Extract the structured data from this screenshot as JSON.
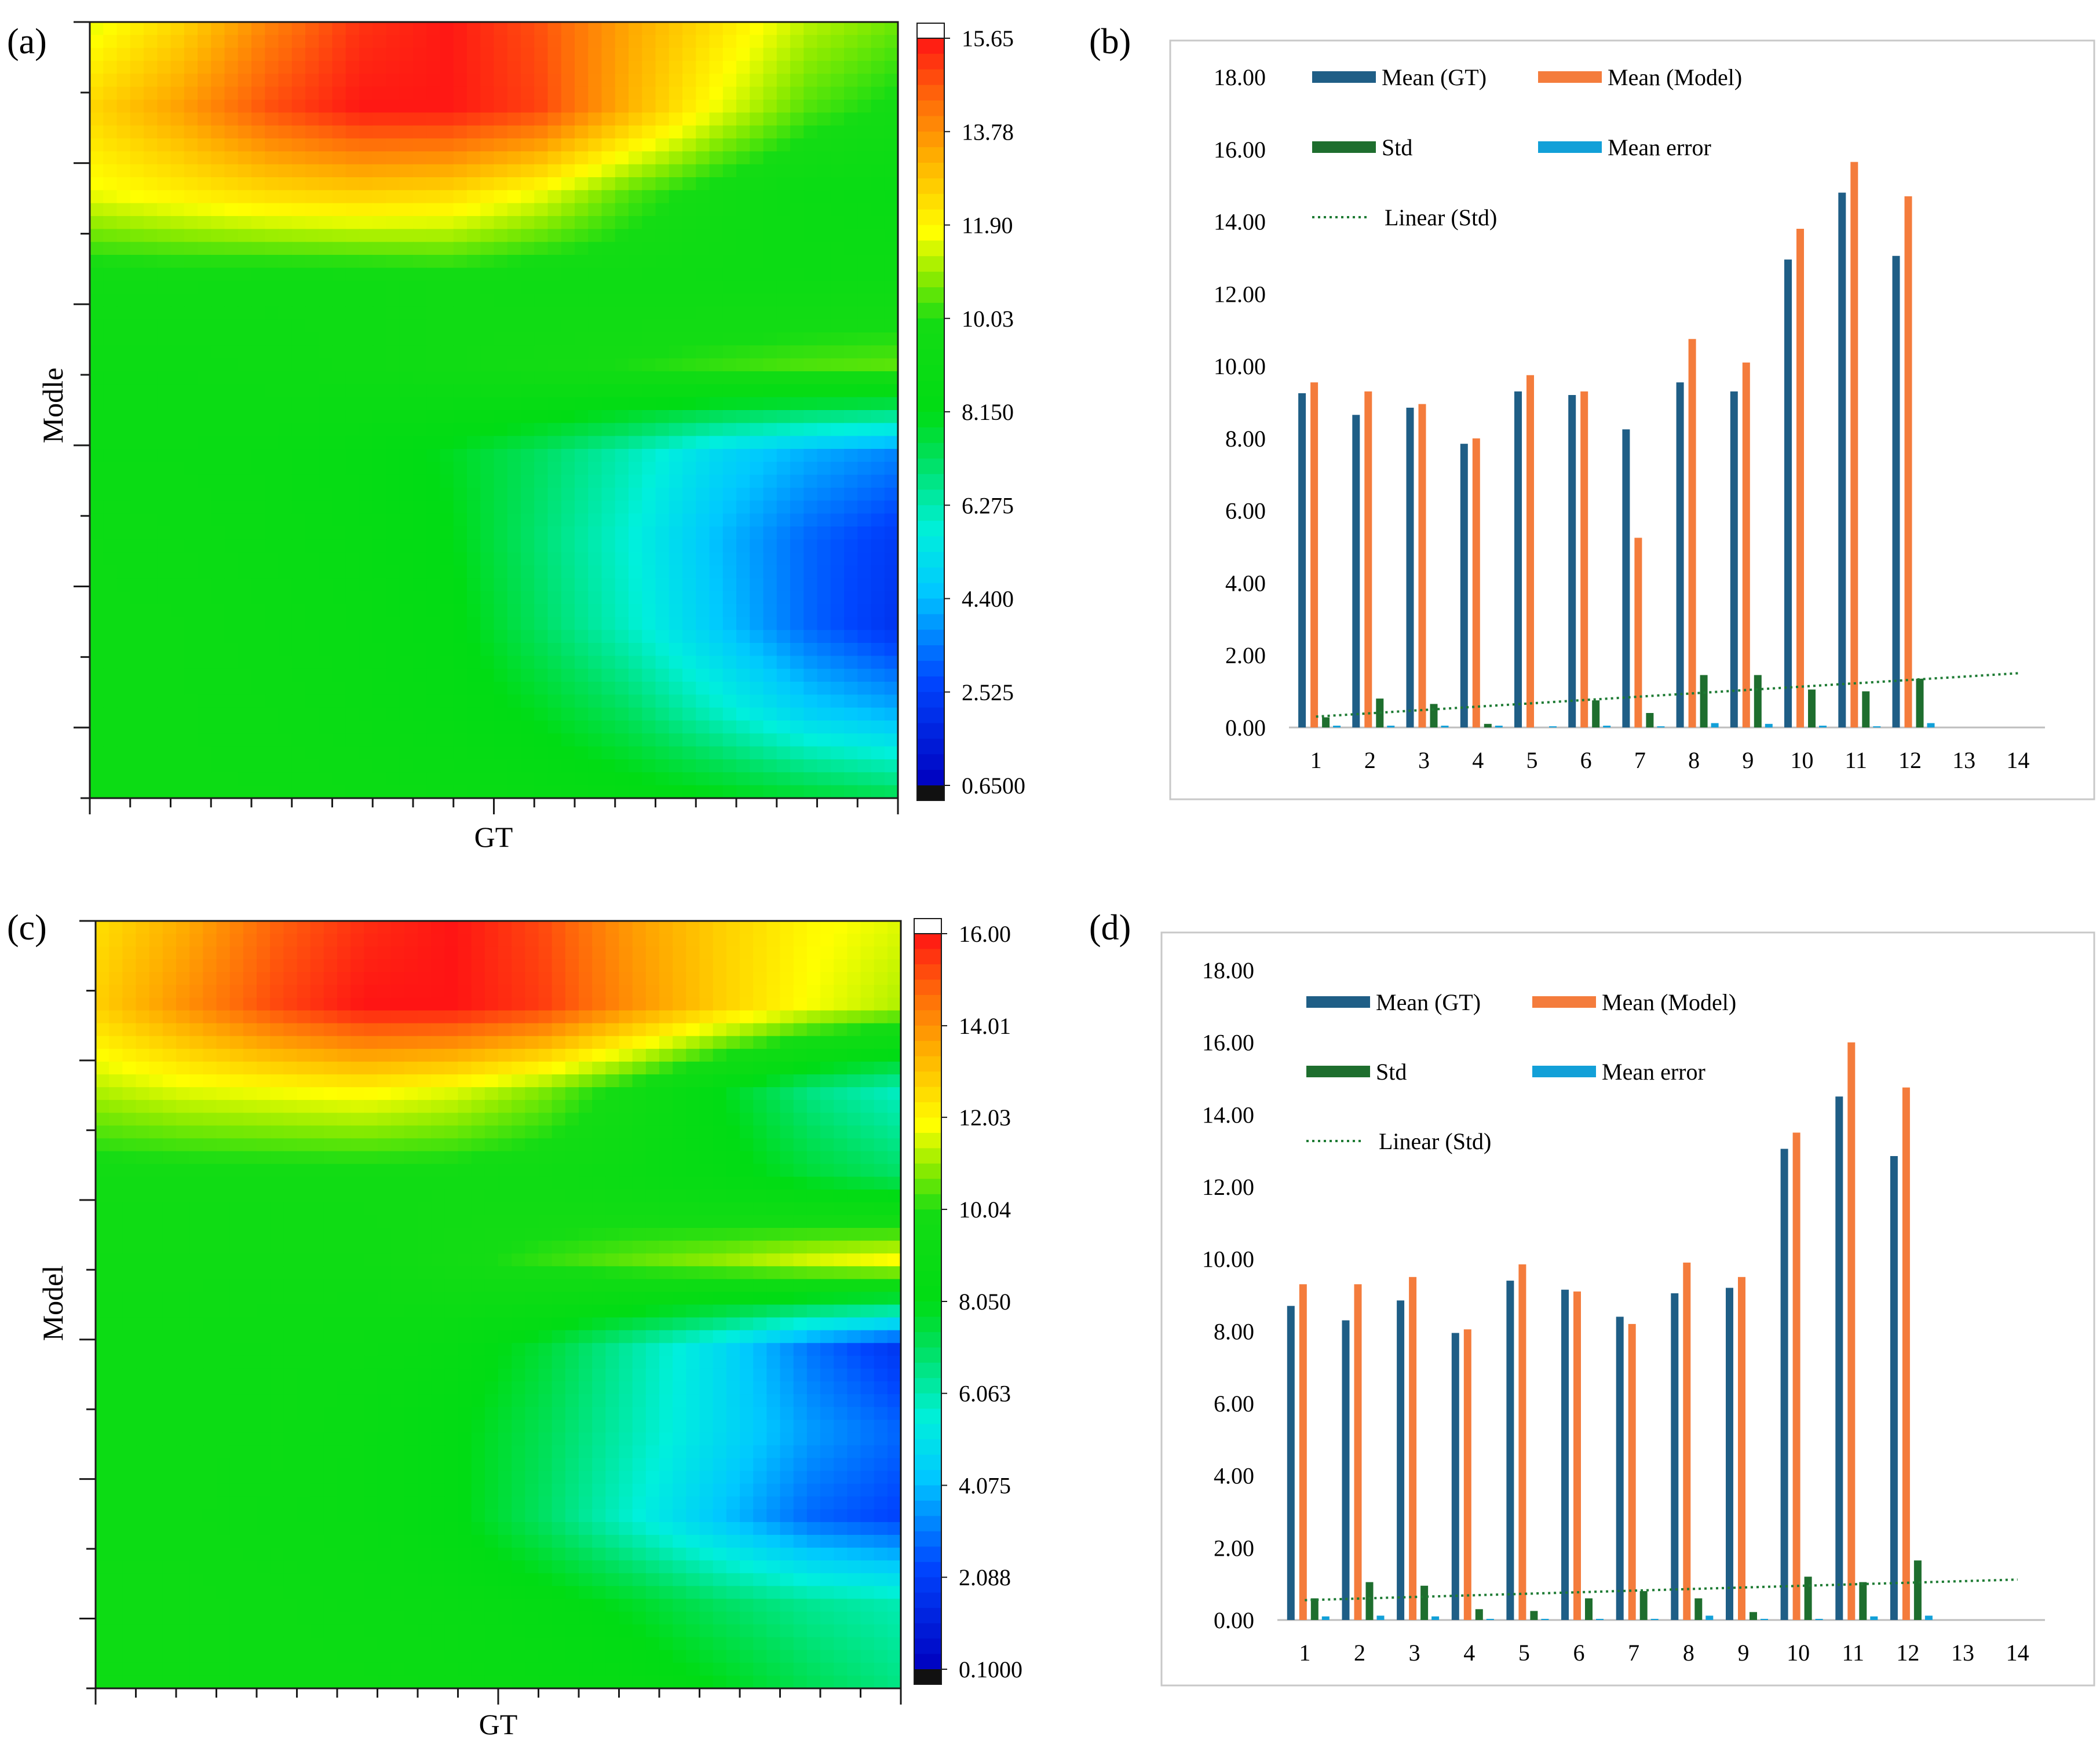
{
  "figure_panels": [
    "(a)",
    "(b)",
    "(c)",
    "(d)"
  ],
  "colors": {
    "mean_gt": "#1F5E86",
    "mean_model": "#F47C3C",
    "std": "#1E6E2E",
    "mean_error": "#12A0D8",
    "linear_std": "#1E7B34",
    "axis": "#1a1a1a",
    "plot_border": "#c8c8c8"
  },
  "chart_data": [
    {
      "type": "heatmap",
      "panel": "(a)",
      "title": "",
      "xlabel": "GT",
      "ylabel": "Modle",
      "colorbar": {
        "min": 0.65,
        "max": 15.65,
        "tick_labels": [
          "15.65",
          "13.78",
          "11.90",
          "10.03",
          "8.150",
          "6.275",
          "4.400",
          "2.525",
          "0.6500"
        ],
        "tick_values": [
          15.65,
          13.775,
          11.9,
          10.025,
          8.15,
          6.275,
          4.4,
          2.525,
          0.65
        ]
      },
      "x_minor_ticks": 20,
      "y_minor_ticks": 11,
      "grid_values": [
        [
          11.5,
          12.5,
          14.0,
          15.2,
          15.6,
          14.8,
          13.4,
          12.3,
          11.2,
          10.6
        ],
        [
          12.5,
          13.5,
          14.8,
          15.6,
          15.6,
          15.0,
          13.2,
          11.6,
          10.4,
          9.8
        ],
        [
          11.6,
          12.0,
          12.4,
          12.6,
          12.4,
          11.6,
          10.4,
          9.6,
          9.0,
          8.8
        ],
        [
          9.5,
          9.5,
          9.4,
          9.4,
          9.6,
          9.4,
          9.4,
          9.3,
          9.2,
          9.2
        ],
        [
          9.2,
          9.2,
          9.3,
          9.4,
          9.6,
          9.8,
          10.0,
          10.2,
          10.4,
          10.5
        ],
        [
          9.0,
          9.0,
          8.9,
          8.6,
          8.0,
          7.2,
          6.2,
          5.0,
          4.2,
          3.6
        ],
        [
          9.2,
          9.1,
          8.9,
          8.7,
          8.2,
          7.0,
          5.8,
          4.4,
          3.2,
          2.4
        ],
        [
          9.2,
          9.2,
          9.0,
          8.8,
          8.4,
          7.2,
          6.0,
          4.6,
          3.2,
          2.2
        ],
        [
          9.2,
          9.2,
          9.1,
          8.9,
          8.6,
          8.0,
          7.2,
          6.0,
          4.8,
          4.2
        ],
        [
          9.2,
          9.2,
          9.2,
          9.1,
          9.0,
          8.8,
          8.5,
          8.2,
          7.8,
          7.4
        ]
      ]
    },
    {
      "type": "bar",
      "panel": "(b)",
      "title": "",
      "xlabel": "",
      "ylabel": "",
      "categories": [
        "1",
        "2",
        "3",
        "4",
        "5",
        "6",
        "7",
        "8",
        "9",
        "10",
        "11",
        "12",
        "13",
        "14"
      ],
      "ylim": [
        0,
        18
      ],
      "ytick_labels": [
        "0.00",
        "2.00",
        "4.00",
        "6.00",
        "8.00",
        "10.00",
        "12.00",
        "14.00",
        "16.00",
        "18.00"
      ],
      "legend": [
        {
          "label": "Mean (GT)",
          "kind": "bar",
          "color_key": "mean_gt"
        },
        {
          "label": "Mean (Model)",
          "kind": "bar",
          "color_key": "mean_model"
        },
        {
          "label": "Std",
          "kind": "bar",
          "color_key": "std"
        },
        {
          "label": "Mean error",
          "kind": "bar",
          "color_key": "mean_error"
        },
        {
          "label": "Linear (Std)",
          "kind": "line",
          "color_key": "linear_std"
        }
      ],
      "series": [
        {
          "name": "Mean (GT)",
          "values": [
            9.25,
            8.65,
            8.85,
            7.85,
            9.3,
            9.2,
            8.25,
            9.55,
            9.3,
            12.95,
            14.8,
            13.05,
            null,
            null
          ]
        },
        {
          "name": "Mean (Model)",
          "values": [
            9.55,
            9.3,
            8.95,
            8.0,
            9.75,
            9.3,
            5.25,
            10.75,
            10.1,
            13.8,
            15.65,
            14.7,
            null,
            null
          ]
        },
        {
          "name": "Std",
          "values": [
            0.28,
            0.8,
            0.65,
            0.1,
            0.0,
            0.75,
            0.4,
            1.45,
            1.45,
            1.05,
            1.0,
            1.35,
            null,
            null
          ]
        },
        {
          "name": "Mean error",
          "values": [
            0.05,
            0.05,
            0.05,
            0.05,
            0.03,
            0.05,
            0.03,
            0.12,
            0.1,
            0.05,
            0.03,
            0.12,
            null,
            null
          ]
        }
      ],
      "trendline": {
        "name": "Linear (Std)",
        "x_range": [
          1,
          14
        ],
        "y_start": 0.3,
        "y_end": 1.5
      }
    },
    {
      "type": "heatmap",
      "panel": "(c)",
      "title": "",
      "xlabel": "GT",
      "ylabel": "Model",
      "colorbar": {
        "min": 0.1,
        "max": 16.0,
        "tick_labels": [
          "16.00",
          "14.01",
          "12.03",
          "10.04",
          "8.050",
          "6.063",
          "4.075",
          "2.088",
          "0.1000"
        ],
        "tick_values": [
          16.0,
          14.01,
          12.03,
          10.04,
          8.05,
          6.063,
          4.075,
          2.088,
          0.1
        ]
      },
      "x_minor_ticks": 20,
      "y_minor_ticks": 11,
      "grid_values": [
        [
          12.5,
          13.5,
          14.8,
          15.6,
          16.0,
          15.2,
          13.8,
          12.8,
          12.0,
          11.6
        ],
        [
          12.8,
          14.0,
          15.2,
          16.0,
          16.0,
          15.4,
          14.0,
          12.8,
          11.8,
          11.2
        ],
        [
          11.2,
          11.6,
          11.8,
          12.0,
          11.6,
          10.8,
          9.6,
          8.0,
          6.6,
          5.8
        ],
        [
          9.6,
          9.6,
          9.6,
          9.6,
          9.6,
          9.4,
          9.0,
          8.4,
          7.6,
          7.0
        ],
        [
          9.4,
          9.4,
          9.4,
          9.4,
          9.8,
          10.2,
          10.6,
          11.0,
          11.6,
          12.0
        ],
        [
          9.2,
          9.2,
          9.1,
          9.0,
          8.6,
          7.6,
          6.2,
          4.8,
          3.0,
          1.8
        ],
        [
          9.2,
          9.2,
          9.1,
          8.8,
          8.2,
          7.2,
          6.0,
          4.8,
          3.6,
          2.8
        ],
        [
          9.2,
          9.2,
          9.0,
          8.8,
          8.2,
          7.0,
          5.6,
          4.2,
          2.8,
          2.2
        ],
        [
          9.3,
          9.3,
          9.2,
          9.0,
          8.8,
          8.4,
          7.8,
          7.0,
          6.4,
          6.0
        ],
        [
          9.3,
          9.3,
          9.2,
          9.2,
          9.0,
          8.8,
          8.6,
          8.0,
          7.2,
          6.6
        ]
      ]
    },
    {
      "type": "bar",
      "panel": "(d)",
      "title": "",
      "xlabel": "",
      "ylabel": "",
      "categories": [
        "1",
        "2",
        "3",
        "4",
        "5",
        "6",
        "7",
        "8",
        "9",
        "10",
        "11",
        "12",
        "13",
        "14"
      ],
      "ylim": [
        0,
        18
      ],
      "ytick_labels": [
        "0.00",
        "2.00",
        "4.00",
        "6.00",
        "8.00",
        "10.00",
        "12.00",
        "14.00",
        "16.00",
        "18.00"
      ],
      "legend": [
        {
          "label": "Mean (GT)",
          "kind": "bar",
          "color_key": "mean_gt"
        },
        {
          "label": "Mean (Model)",
          "kind": "bar",
          "color_key": "mean_model"
        },
        {
          "label": "Std",
          "kind": "bar",
          "color_key": "std"
        },
        {
          "label": "Mean error",
          "kind": "bar",
          "color_key": "mean_error"
        },
        {
          "label": "Linear (Std)",
          "kind": "line",
          "color_key": "linear_std"
        }
      ],
      "series": [
        {
          "name": "Mean (GT)",
          "values": [
            8.7,
            8.3,
            8.85,
            7.95,
            9.4,
            9.15,
            8.4,
            9.05,
            9.2,
            13.05,
            14.5,
            12.85,
            null,
            null
          ]
        },
        {
          "name": "Mean (Model)",
          "values": [
            9.3,
            9.3,
            9.5,
            8.05,
            9.85,
            9.1,
            8.2,
            9.9,
            9.5,
            13.5,
            16.0,
            14.75,
            null,
            null
          ]
        },
        {
          "name": "Std",
          "values": [
            0.6,
            1.05,
            0.95,
            0.3,
            0.25,
            0.6,
            0.8,
            0.6,
            0.22,
            1.2,
            1.05,
            1.65,
            null,
            null
          ]
        },
        {
          "name": "Mean error",
          "values": [
            0.1,
            0.12,
            0.1,
            0.03,
            0.03,
            0.03,
            0.03,
            0.12,
            0.03,
            0.03,
            0.1,
            0.12,
            null,
            null
          ]
        }
      ],
      "trendline": {
        "name": "Linear (Std)",
        "x_range": [
          1,
          14
        ],
        "y_start": 0.55,
        "y_end": 1.12
      }
    }
  ]
}
